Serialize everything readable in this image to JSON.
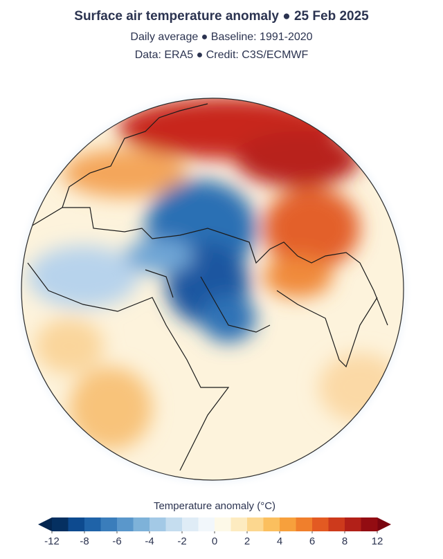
{
  "header": {
    "title": "Surface air temperature anomaly ● 25 Feb 2025",
    "subtitle": "Daily average ● Baseline: 1991-2020",
    "credit": "Data: ERA5 ● Credit: C3S/ECMWF"
  },
  "colorbar": {
    "label": "Temperature anomaly (°C)",
    "ticks": [
      -12,
      -8,
      -6,
      -4,
      -2,
      0,
      2,
      4,
      6,
      8,
      12
    ],
    "colors": [
      "#053061",
      "#0d4a8f",
      "#1f63a8",
      "#3a7dbb",
      "#5a97cb",
      "#7eb2d9",
      "#a3c9e6",
      "#c5ddef",
      "#dfecf6",
      "#f2f7fb",
      "#fdf9e8",
      "#fdebc0",
      "#fcd78f",
      "#fbbf5e",
      "#f7a03c",
      "#f07f2c",
      "#e35a22",
      "#cd3a1c",
      "#b22018",
      "#930c12"
    ],
    "under_color": "#042650",
    "over_color": "#7a0510"
  }
}
